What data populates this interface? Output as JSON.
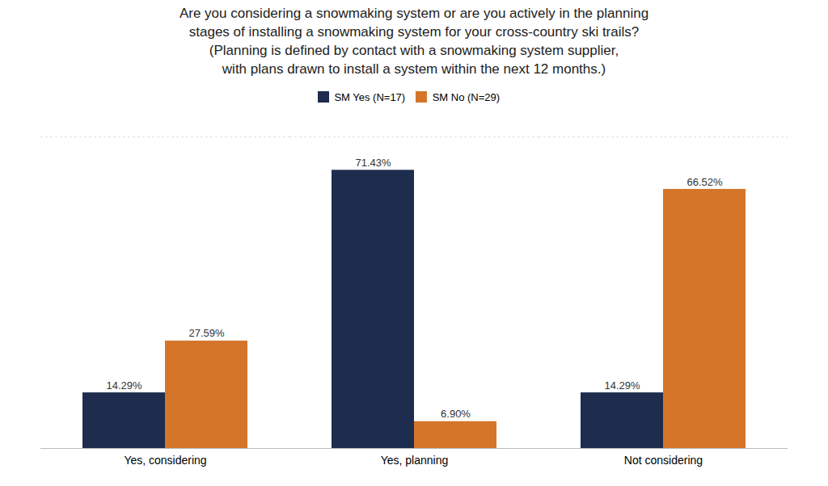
{
  "chart_data": {
    "type": "bar",
    "title": "Are you considering a snowmaking system or are you actively in the planning\nstages of installing a snowmaking system for your cross-country ski trails?\n(Planning is defined by contact with a snowmaking system supplier,\nwith plans drawn to install a system within the next 12 months.)",
    "categories": [
      "Yes, considering",
      "Yes, planning",
      "Not considering"
    ],
    "series": [
      {
        "name": "SM Yes (N=17)",
        "color": "#1e2d4e",
        "values": [
          14.29,
          71.43,
          14.29
        ],
        "value_labels": [
          "14.29%",
          "71.43%",
          "14.29%"
        ]
      },
      {
        "name": "SM No (N=29)",
        "color": "#d4752a",
        "values": [
          27.59,
          6.9,
          66.52
        ],
        "value_labels": [
          "27.59%",
          "6.90%",
          "66.52%"
        ]
      }
    ],
    "ylim": [
      0,
      80
    ],
    "grid": false,
    "legend": "top",
    "data_labels": true,
    "tick_labels": "x"
  }
}
